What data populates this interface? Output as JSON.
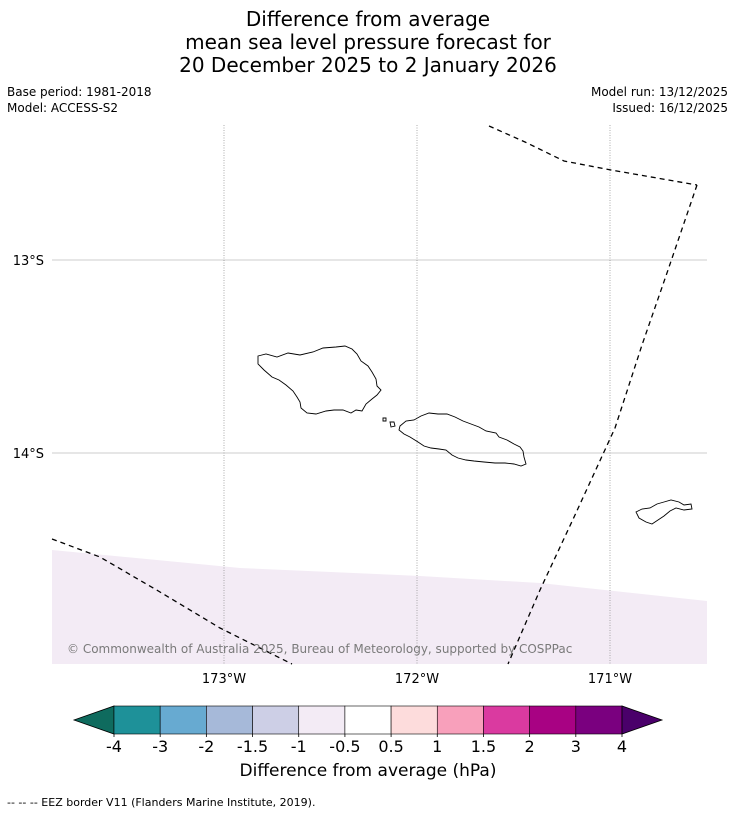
{
  "title": {
    "line1": "Difference from average",
    "line2": "mean sea level pressure forecast for",
    "line3": "20 December 2025 to 2 January 2026"
  },
  "meta": {
    "base_period": "Base period: 1981-2018",
    "model": "Model: ACCESS-S2",
    "model_run": "Model run: 13/12/2025",
    "issued": "Issued: 16/12/2025"
  },
  "map": {
    "lat_labels": [
      "13°S",
      "14°S"
    ],
    "lon_labels": [
      "173°W",
      "172°W",
      "171°W"
    ],
    "copyright": "© Commonwealth of Australia 2025, Bureau of Meteorology, supported by COSPPac",
    "anomaly_fill_color": "#f3ebf5",
    "anomaly_fill_category": "-1 to -0.5"
  },
  "colorbar": {
    "label": "Difference from average (hPa)",
    "ticks": [
      "-4",
      "-3",
      "-2",
      "-1.5",
      "-1",
      "-0.5",
      "0.5",
      "1",
      "1.5",
      "2",
      "3",
      "4"
    ],
    "colors": [
      "#0f6b5e",
      "#1e9199",
      "#67aad1",
      "#a6b9d9",
      "#cdcfe6",
      "#f3ebf5",
      "#ffffff",
      "#fddcdc",
      "#f8a0bb",
      "#da3aa0",
      "#a80283",
      "#7a007f",
      "#4a006a"
    ]
  },
  "footer": {
    "legend_line": "--  --  -- EEZ border V11 (Flanders Marine Institute, 2019)."
  }
}
